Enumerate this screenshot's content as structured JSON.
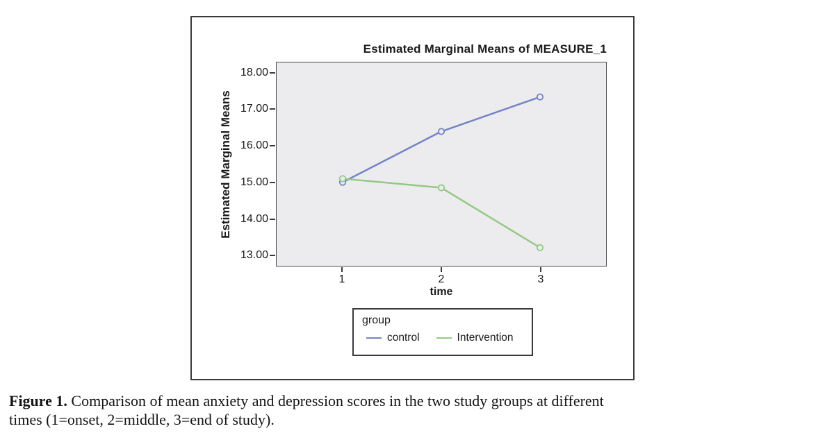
{
  "figure": {
    "chart_title": "Estimated Marginal Means of MEASURE_1",
    "y_axis_label": "Estimated Marginal Means",
    "x_axis_label": "time",
    "legend": {
      "title": "group",
      "entries": [
        {
          "label": "control",
          "color": "#7283c8"
        },
        {
          "label": "Intervention",
          "color": "#92c884"
        }
      ]
    }
  },
  "caption": {
    "label": "Figure 1.",
    "line1": "Comparison of mean anxiety and depression scores in the two study groups at different",
    "line2": "times (1=onset, 2=middle, 3=end of study)."
  },
  "chart_data": {
    "type": "line",
    "title": "Estimated Marginal Means of MEASURE_1",
    "xlabel": "time",
    "ylabel": "Estimated Marginal Means",
    "x": [
      1,
      2,
      3
    ],
    "x_tick_labels": [
      "1",
      "2",
      "3"
    ],
    "series": [
      {
        "name": "control",
        "color": "#7283c8",
        "values": [
          15.0,
          16.4,
          17.35
        ]
      },
      {
        "name": "Intervention",
        "color": "#92c884",
        "values": [
          15.1,
          14.85,
          13.2
        ]
      }
    ],
    "y_ticks": [
      18,
      17,
      16,
      15,
      14,
      13
    ],
    "y_tick_labels": [
      "18.00",
      "17.00",
      "16.00",
      "15.00",
      "14.00",
      "13.00"
    ],
    "ylim": [
      12.7,
      18.3
    ],
    "grid": false,
    "legend_title": "group",
    "legend_position": "bottom",
    "plot_bg": "#ececee",
    "marker": "open-circle"
  }
}
